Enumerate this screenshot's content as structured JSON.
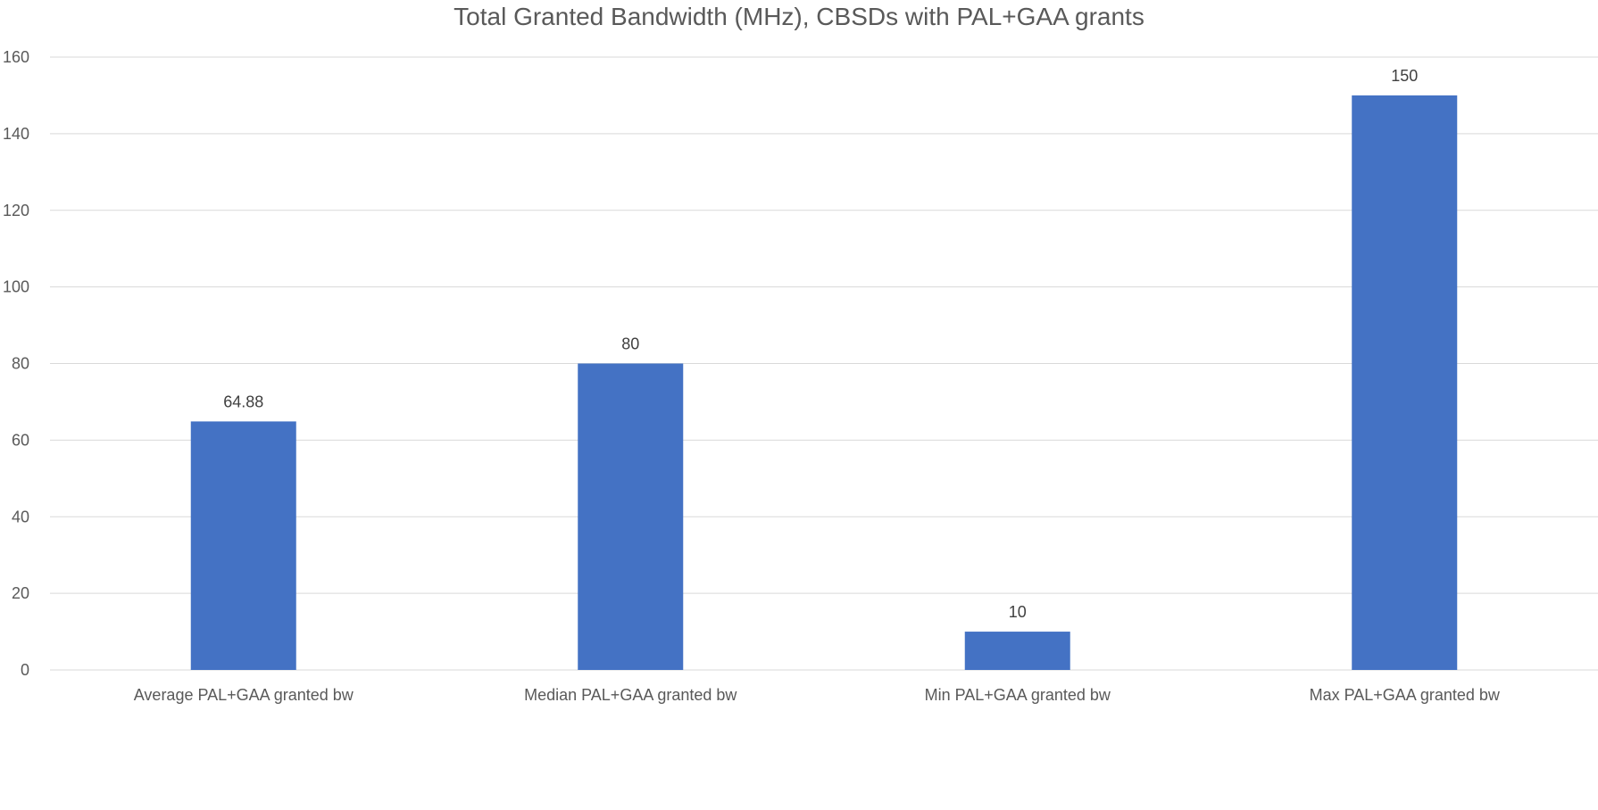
{
  "chart_data": {
    "type": "bar",
    "title": "Total Granted Bandwidth (MHz), CBSDs with PAL+GAA grants",
    "xlabel": "",
    "ylabel": "",
    "categories": [
      "Average PAL+GAA granted bw",
      "Median PAL+GAA granted bw",
      "Min PAL+GAA granted bw",
      "Max PAL+GAA granted bw"
    ],
    "values": [
      64.88,
      80,
      10,
      150
    ],
    "data_labels": [
      "64.88",
      "80",
      "10",
      "150"
    ],
    "ylim": [
      0,
      160
    ],
    "yticks": [
      0,
      20,
      40,
      60,
      80,
      100,
      120,
      140,
      160
    ],
    "grid": true,
    "legend": "none",
    "colors": {
      "bar": "#4472c4",
      "gridline": "#d9d9d9",
      "text": "#595959"
    }
  }
}
